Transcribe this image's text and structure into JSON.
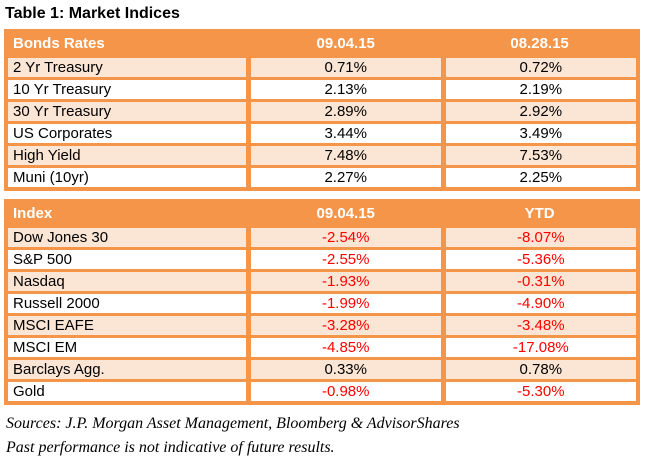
{
  "title": "Table 1: Market Indices",
  "colors": {
    "header_bg": "#F4954A",
    "grid_border": "#F4954A",
    "row_stripe_bg": "#FBE5D4",
    "row_plain_bg": "#FFFFFF",
    "header_text": "#FFFFFF",
    "body_text": "#000000",
    "negative_value": "#FF0000"
  },
  "chart_data": [
    {
      "type": "table",
      "name": "bonds-rates",
      "headers": [
        "Bonds Rates",
        "09.04.15",
        "08.28.15"
      ],
      "rows": [
        [
          "2 Yr Treasury",
          "0.71%",
          "0.72%"
        ],
        [
          "10 Yr Treasury",
          "2.13%",
          "2.19%"
        ],
        [
          "30 Yr Treasury",
          "2.89%",
          "2.92%"
        ],
        [
          "US Corporates",
          "3.44%",
          "3.49%"
        ],
        [
          "High Yield",
          "7.48%",
          "7.53%"
        ],
        [
          "Muni (10yr)",
          "2.27%",
          "2.25%"
        ]
      ]
    },
    {
      "type": "table",
      "name": "index",
      "headers": [
        "Index",
        "09.04.15",
        "YTD"
      ],
      "rows": [
        [
          "Dow Jones 30",
          "-2.54%",
          "-8.07%"
        ],
        [
          "S&P 500",
          "-2.55%",
          "-5.36%"
        ],
        [
          "Nasdaq",
          "-1.93%",
          "-0.31%"
        ],
        [
          "Russell 2000",
          "-1.99%",
          "-4.90%"
        ],
        [
          "MSCI EAFE",
          "-3.28%",
          "-3.48%"
        ],
        [
          "MSCI EM",
          "-4.85%",
          "-17.08%"
        ],
        [
          "Barclays Agg.",
          "0.33%",
          "0.78%"
        ],
        [
          "Gold",
          "-0.98%",
          "-5.30%"
        ]
      ]
    }
  ],
  "footer": {
    "sources": "Sources: J.P. Morgan Asset Management, Bloomberg & AdvisorShares",
    "disclaimer": "Past performance is not indicative of future results."
  }
}
